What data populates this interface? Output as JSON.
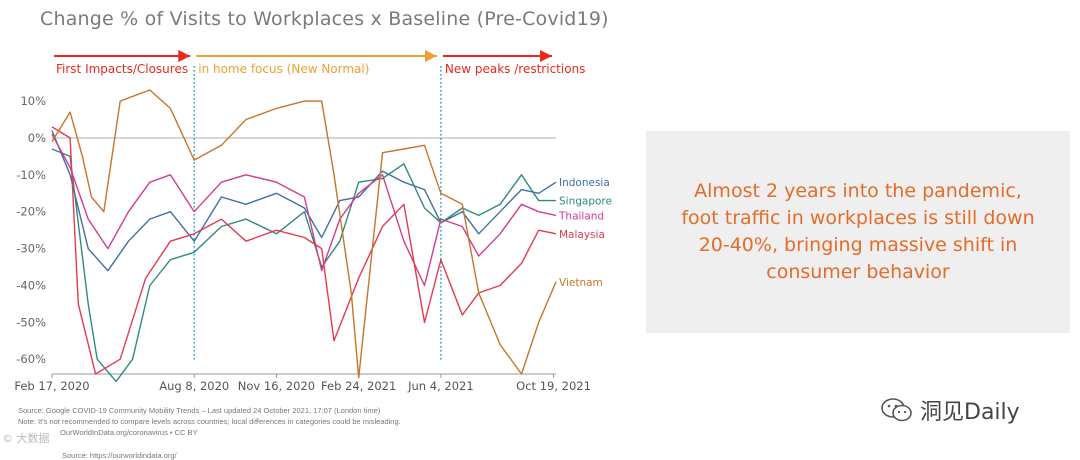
{
  "chart_data": {
    "type": "line",
    "title": "Change % of Visits to Workplaces x Baseline (Pre-Covid19)",
    "x_axis": {
      "start": "2020-02-17",
      "end": "2021-10-22",
      "tick_labels": [
        "Feb 17, 2020",
        "Aug 8, 2020",
        "Nov 16, 2020",
        "Feb 24, 2021",
        "Jun 4, 2021",
        "Oct 19, 2021"
      ],
      "tick_dates": [
        "2020-02-17",
        "2020-08-08",
        "2020-11-16",
        "2021-02-24",
        "2021-06-04",
        "2021-10-19"
      ]
    },
    "y_axis": {
      "ylim": [
        -64,
        13
      ],
      "ticks": [
        10,
        0,
        -10,
        -20,
        -30,
        -40,
        -50,
        -60
      ],
      "tick_labels": [
        "10%",
        "0%",
        "-10%",
        "-20%",
        "-30%",
        "-40%",
        "-50%",
        "-60%"
      ]
    },
    "grid": false,
    "zero_line": true,
    "phase_dividers": [
      "2020-08-08",
      "2021-06-04"
    ],
    "phases": [
      {
        "label": "First Impacts/Closures",
        "color": "#e8291c",
        "start": "2020-02-17",
        "end": "2020-08-08"
      },
      {
        "label": "in home focus (New Normal)",
        "color": "#f0a030",
        "start": "2020-08-08",
        "end": "2021-06-04"
      },
      {
        "label": "New peaks /restrictions",
        "color": "#e8291c",
        "start": "2021-06-04",
        "end": "2021-10-22"
      }
    ],
    "series": [
      {
        "name": "Indonesia",
        "color": "#3f6fa8",
        "end_value": -12,
        "x": [
          "2020-02-17",
          "2020-03-10",
          "2020-04-01",
          "2020-04-25",
          "2020-05-20",
          "2020-06-15",
          "2020-07-10",
          "2020-08-08",
          "2020-09-10",
          "2020-10-10",
          "2020-11-16",
          "2020-12-20",
          "2021-01-10",
          "2021-02-01",
          "2021-02-24",
          "2021-03-25",
          "2021-04-20",
          "2021-05-15",
          "2021-06-04",
          "2021-06-30",
          "2021-07-20",
          "2021-08-15",
          "2021-09-10",
          "2021-10-01",
          "2021-10-22"
        ],
        "values": [
          2,
          -10,
          -30,
          -36,
          -28,
          -22,
          -20,
          -28,
          -16,
          -18,
          -15,
          -19,
          -27,
          -17,
          -16,
          -9,
          -12,
          -14,
          -23,
          -20,
          -26,
          -20,
          -14,
          -15,
          -12
        ]
      },
      {
        "name": "Singapore",
        "color": "#2e8b7e",
        "end_value": -17,
        "x": [
          "2020-02-17",
          "2020-03-10",
          "2020-04-01",
          "2020-04-12",
          "2020-05-05",
          "2020-05-25",
          "2020-06-15",
          "2020-07-10",
          "2020-08-08",
          "2020-09-10",
          "2020-10-10",
          "2020-11-16",
          "2020-12-20",
          "2021-01-10",
          "2021-02-01",
          "2021-02-24",
          "2021-03-25",
          "2021-04-20",
          "2021-05-15",
          "2021-06-04",
          "2021-06-30",
          "2021-07-20",
          "2021-08-15",
          "2021-09-10",
          "2021-10-01",
          "2021-10-22"
        ],
        "values": [
          -3,
          -5,
          -45,
          -60,
          -66,
          -60,
          -40,
          -33,
          -31,
          -24,
          -22,
          -26,
          -20,
          -35,
          -28,
          -12,
          -11,
          -7,
          -19,
          -23,
          -19,
          -21,
          -18,
          -10,
          -17,
          -17
        ]
      },
      {
        "name": "Thailand",
        "color": "#d43c8e",
        "end_value": -21,
        "x": [
          "2020-02-17",
          "2020-03-10",
          "2020-04-01",
          "2020-04-25",
          "2020-05-20",
          "2020-06-15",
          "2020-07-10",
          "2020-08-08",
          "2020-09-10",
          "2020-10-10",
          "2020-11-16",
          "2020-12-20",
          "2021-01-10",
          "2021-02-01",
          "2021-02-24",
          "2021-03-25",
          "2021-04-20",
          "2021-05-15",
          "2021-06-04",
          "2021-06-30",
          "2021-07-20",
          "2021-08-15",
          "2021-09-10",
          "2021-10-01",
          "2021-10-22"
        ],
        "values": [
          1,
          -8,
          -22,
          -30,
          -20,
          -12,
          -10,
          -20,
          -12,
          -10,
          -12,
          -16,
          -36,
          -22,
          -15,
          -10,
          -28,
          -40,
          -22,
          -24,
          -32,
          -26,
          -18,
          -20,
          -21
        ]
      },
      {
        "name": "Malaysia",
        "color": "#e23b4f",
        "end_value": -26,
        "x": [
          "2020-02-17",
          "2020-03-10",
          "2020-03-20",
          "2020-04-10",
          "2020-05-10",
          "2020-06-10",
          "2020-07-10",
          "2020-08-08",
          "2020-09-10",
          "2020-10-10",
          "2020-11-16",
          "2020-12-20",
          "2021-01-10",
          "2021-01-25",
          "2021-02-24",
          "2021-03-25",
          "2021-04-20",
          "2021-05-15",
          "2021-06-04",
          "2021-06-30",
          "2021-07-20",
          "2021-08-15",
          "2021-09-10",
          "2021-10-01",
          "2021-10-22"
        ],
        "values": [
          3,
          0,
          -45,
          -64,
          -60,
          -38,
          -28,
          -26,
          -22,
          -28,
          -25,
          -27,
          -30,
          -55,
          -38,
          -24,
          -18,
          -50,
          -33,
          -48,
          -42,
          -40,
          -34,
          -25,
          -26
        ]
      },
      {
        "name": "Vietnam",
        "color": "#c7752a",
        "end_value": -39,
        "x": [
          "2020-02-17",
          "2020-03-10",
          "2020-03-25",
          "2020-04-05",
          "2020-04-20",
          "2020-05-10",
          "2020-06-15",
          "2020-07-10",
          "2020-08-08",
          "2020-09-10",
          "2020-10-10",
          "2020-11-16",
          "2020-12-20",
          "2021-01-10",
          "2021-01-25",
          "2021-02-15",
          "2021-02-24",
          "2021-03-25",
          "2021-04-20",
          "2021-05-15",
          "2021-06-04",
          "2021-06-30",
          "2021-07-20",
          "2021-08-15",
          "2021-09-10",
          "2021-10-01",
          "2021-10-22"
        ],
        "values": [
          -1,
          7,
          -5,
          -16,
          -20,
          10,
          13,
          8,
          -6,
          -2,
          5,
          8,
          10,
          10,
          -10,
          -42,
          -65,
          -4,
          -3,
          -2,
          -15,
          -18,
          -42,
          -56,
          -64,
          -50,
          -39
        ]
      }
    ]
  },
  "callout": {
    "text": "Almost 2 years into the pandemic, foot traffic in workplaces is still down 20-40%, bringing massive shift in consumer behavior"
  },
  "source": {
    "line1": "Source: Google COVID-19 Community Mobility Trends – Last updated 24 October 2021, 17:07 (London time)",
    "line2": "Note: It's not recommended to compare levels across countries; local differences in categories could be misleading.",
    "line3": "OurWorldInData.org/coronavirus • CC BY",
    "line4": "Source: https://ourworldindata.org/"
  },
  "watermark": {
    "text": "洞见Daily"
  },
  "corner_mark": {
    "text": "© 大数据"
  }
}
